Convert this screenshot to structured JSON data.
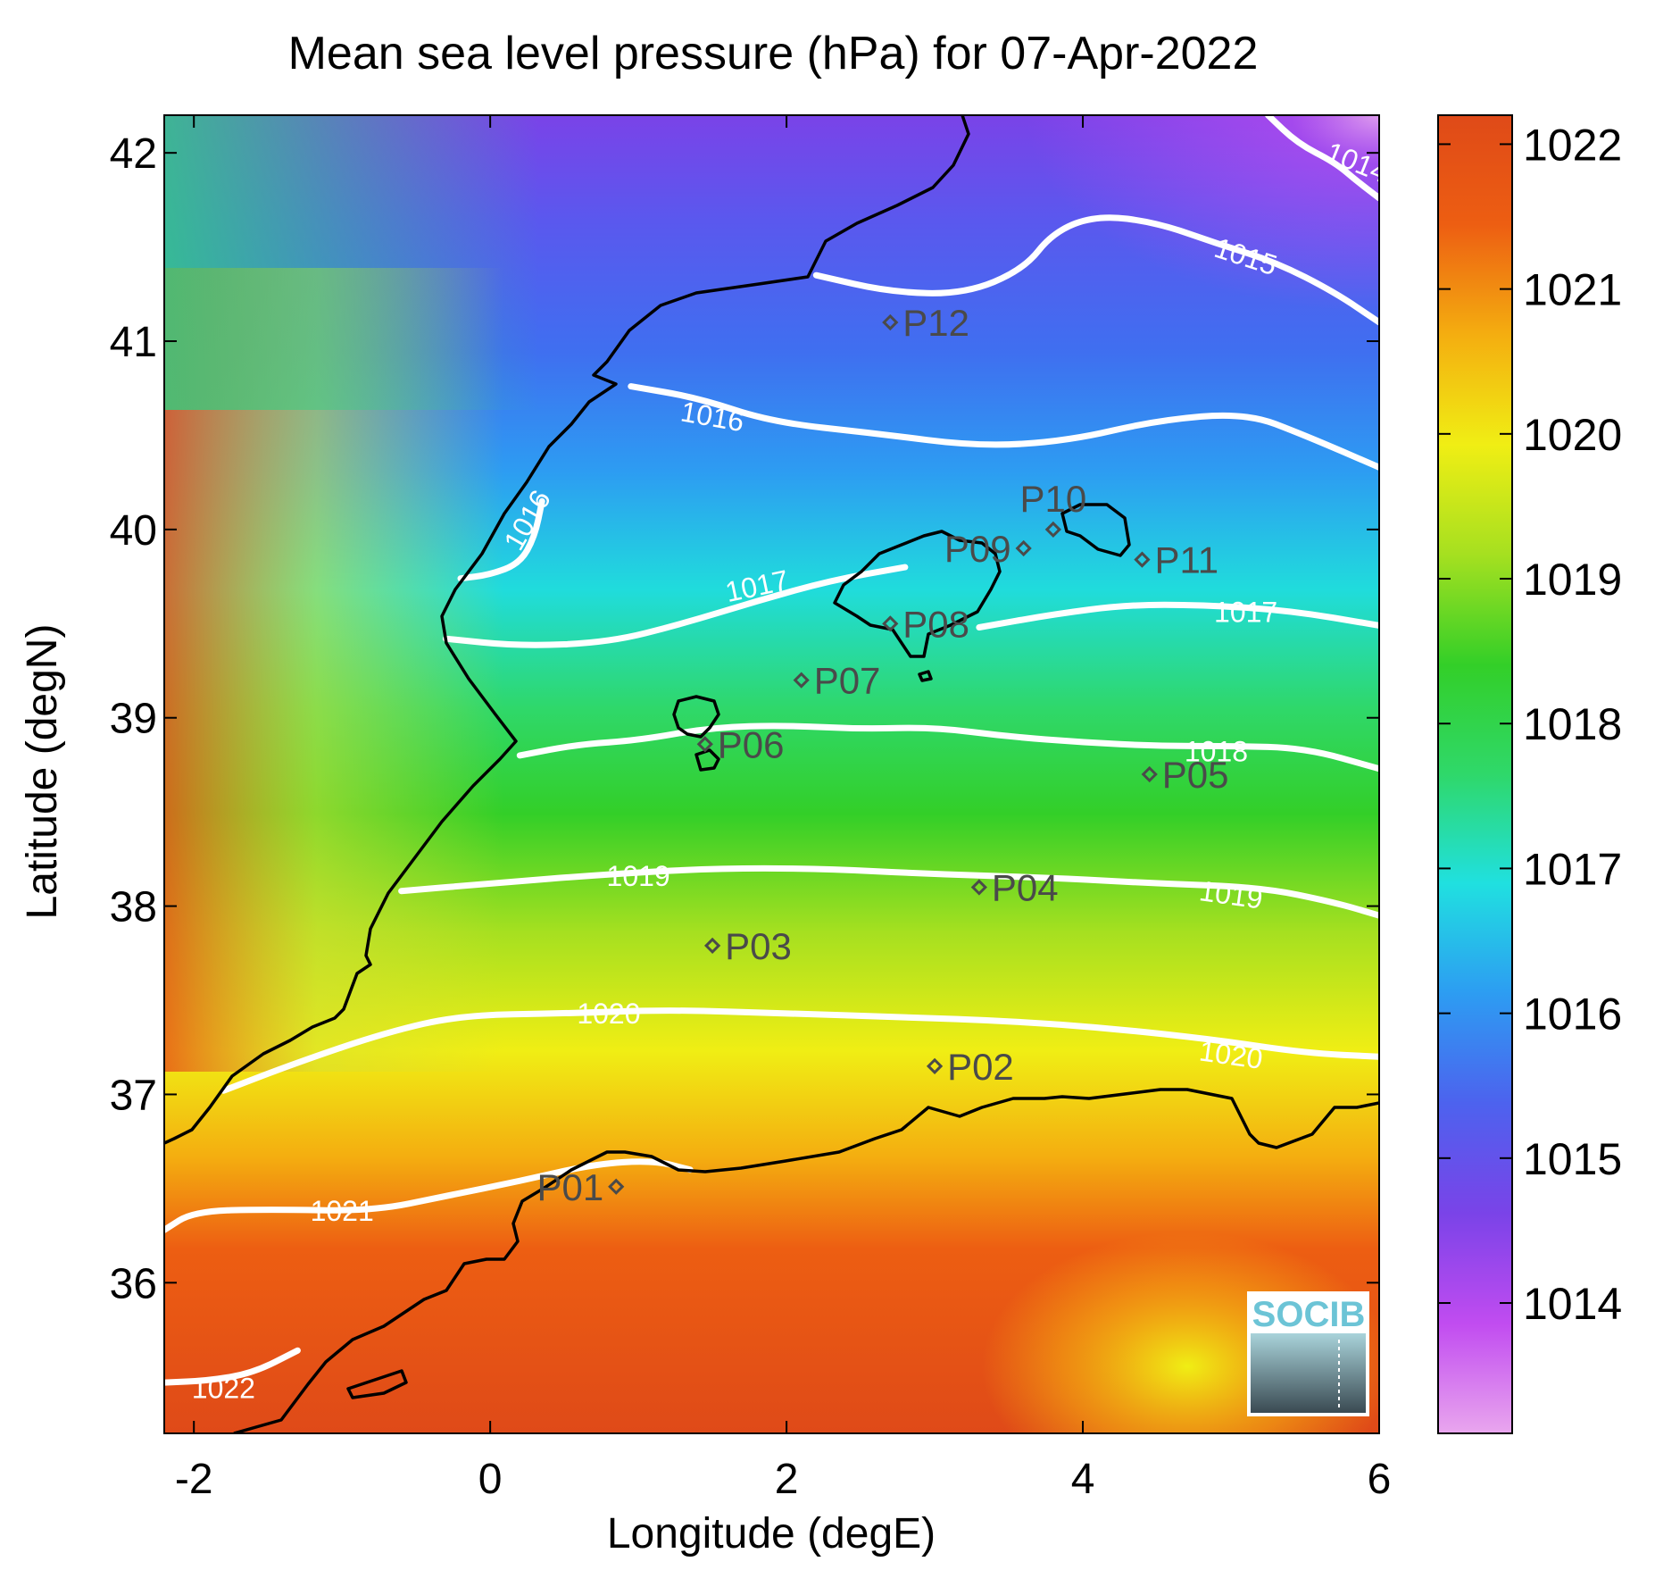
{
  "title": "Mean sea level pressure (hPa) for 07-Apr-2022",
  "xlabel": "Longitude (degE)",
  "ylabel": "Latitude (degN)",
  "xlim": [
    -2.2,
    6
  ],
  "ylim": [
    35.2,
    42.2
  ],
  "xticks": [
    {
      "v": -2,
      "label": "-2"
    },
    {
      "v": 0,
      "label": "0"
    },
    {
      "v": 2,
      "label": "2"
    },
    {
      "v": 4,
      "label": "4"
    },
    {
      "v": 6,
      "label": "6"
    }
  ],
  "yticks": [
    {
      "v": 36,
      "label": "36"
    },
    {
      "v": 37,
      "label": "37"
    },
    {
      "v": 38,
      "label": "38"
    },
    {
      "v": 39,
      "label": "39"
    },
    {
      "v": 40,
      "label": "40"
    },
    {
      "v": 41,
      "label": "41"
    },
    {
      "v": 42,
      "label": "42"
    }
  ],
  "colorbar": {
    "min": 1013.1,
    "max": 1022.2,
    "ticks": [
      {
        "v": 1014,
        "label": "1014"
      },
      {
        "v": 1015,
        "label": "1015"
      },
      {
        "v": 1016,
        "label": "1016"
      },
      {
        "v": 1017,
        "label": "1017"
      },
      {
        "v": 1018,
        "label": "1018"
      },
      {
        "v": 1019,
        "label": "1019"
      },
      {
        "v": 1020,
        "label": "1020"
      },
      {
        "v": 1021,
        "label": "1021"
      },
      {
        "v": 1022,
        "label": "1022"
      }
    ],
    "colors": [
      "#e9a6ee",
      "#c14cf0",
      "#7a43e8",
      "#4d62ee",
      "#2d9cf2",
      "#20e0e0",
      "#2fd86a",
      "#33cf28",
      "#a6e020",
      "#f0ee14",
      "#f4ae10",
      "#ed5e12",
      "#df4a18"
    ]
  },
  "contours": [
    {
      "level": 1014,
      "label": "1014",
      "points": [
        [
          5.25,
          42.2
        ],
        [
          5.45,
          42.05
        ],
        [
          5.7,
          41.95
        ],
        [
          5.85,
          41.85
        ],
        [
          6.0,
          41.76
        ]
      ],
      "labels": [
        {
          "x": 5.85,
          "y": 41.95,
          "rot": 22
        }
      ]
    },
    {
      "level": 1015,
      "label": "1015",
      "points": [
        [
          2.2,
          41.35
        ],
        [
          2.7,
          41.26
        ],
        [
          3.2,
          41.25
        ],
        [
          3.6,
          41.38
        ],
        [
          3.8,
          41.58
        ],
        [
          4.1,
          41.67
        ],
        [
          4.5,
          41.63
        ],
        [
          4.9,
          41.52
        ],
        [
          5.3,
          41.42
        ],
        [
          5.7,
          41.26
        ],
        [
          6.0,
          41.1
        ]
      ],
      "labels": [
        {
          "x": 5.1,
          "y": 41.45,
          "rot": 18
        }
      ]
    },
    {
      "level": 1016,
      "label": "1016",
      "points": [
        [
          0.95,
          40.76
        ],
        [
          1.4,
          40.7
        ],
        [
          1.9,
          40.57
        ],
        [
          2.6,
          40.51
        ],
        [
          3.3,
          40.44
        ],
        [
          3.9,
          40.47
        ],
        [
          4.5,
          40.58
        ],
        [
          5.1,
          40.62
        ],
        [
          5.5,
          40.5
        ],
        [
          6.0,
          40.33
        ]
      ],
      "labels": [
        {
          "x": 1.5,
          "y": 40.6,
          "rot": 10
        }
      ]
    },
    {
      "level": 1016,
      "label": "1016",
      "points": [
        [
          -0.2,
          39.74
        ],
        [
          0.0,
          39.76
        ],
        [
          0.2,
          39.82
        ],
        [
          0.3,
          39.96
        ],
        [
          0.35,
          40.15
        ]
      ],
      "labels": [
        {
          "x": 0.25,
          "y": 40.05,
          "rot": -60
        }
      ]
    },
    {
      "level": 1017,
      "label": "1017",
      "points": [
        [
          -0.3,
          39.42
        ],
        [
          0.2,
          39.38
        ],
        [
          0.8,
          39.4
        ],
        [
          1.3,
          39.5
        ],
        [
          1.8,
          39.62
        ],
        [
          2.3,
          39.73
        ],
        [
          2.8,
          39.8
        ]
      ],
      "labels": [
        {
          "x": 1.8,
          "y": 39.7,
          "rot": -12
        }
      ]
    },
    {
      "level": 1017,
      "label": "1017",
      "points": [
        [
          3.3,
          39.48
        ],
        [
          3.8,
          39.55
        ],
        [
          4.3,
          39.6
        ],
        [
          4.8,
          39.6
        ],
        [
          5.4,
          39.57
        ],
        [
          6.0,
          39.49
        ]
      ],
      "labels": [
        {
          "x": 5.1,
          "y": 39.56,
          "rot": 0
        }
      ]
    },
    {
      "level": 1018,
      "label": "1018",
      "points": [
        [
          0.2,
          38.8
        ],
        [
          0.6,
          38.86
        ],
        [
          1.0,
          38.88
        ],
        [
          1.5,
          38.95
        ],
        [
          2.0,
          38.96
        ],
        [
          2.5,
          38.94
        ],
        [
          3.0,
          38.95
        ],
        [
          3.5,
          38.9
        ],
        [
          4.0,
          38.87
        ],
        [
          4.5,
          38.85
        ],
        [
          5.0,
          38.85
        ],
        [
          5.5,
          38.84
        ],
        [
          6.0,
          38.73
        ]
      ],
      "labels": [
        {
          "x": 4.9,
          "y": 38.82,
          "rot": 0
        }
      ]
    },
    {
      "level": 1019,
      "label": "1019",
      "points": [
        [
          -0.6,
          38.08
        ],
        [
          0.0,
          38.12
        ],
        [
          0.8,
          38.17
        ],
        [
          1.5,
          38.2
        ],
        [
          2.2,
          38.2
        ],
        [
          3.0,
          38.17
        ],
        [
          3.8,
          38.15
        ],
        [
          4.5,
          38.12
        ],
        [
          5.2,
          38.1
        ],
        [
          5.7,
          38.02
        ],
        [
          6.0,
          37.95
        ]
      ],
      "labels": [
        {
          "x": 1.0,
          "y": 38.16,
          "rot": 0
        },
        {
          "x": 5.0,
          "y": 38.06,
          "rot": 8
        }
      ]
    },
    {
      "level": 1020,
      "label": "1020",
      "points": [
        [
          -1.8,
          37.02
        ],
        [
          -1.3,
          37.17
        ],
        [
          -0.7,
          37.33
        ],
        [
          -0.2,
          37.42
        ],
        [
          0.5,
          37.43
        ],
        [
          1.2,
          37.45
        ],
        [
          2.0,
          37.43
        ],
        [
          2.8,
          37.41
        ],
        [
          3.5,
          37.39
        ],
        [
          4.2,
          37.35
        ],
        [
          4.9,
          37.29
        ],
        [
          5.5,
          37.22
        ],
        [
          6.0,
          37.2
        ]
      ],
      "labels": [
        {
          "x": 0.8,
          "y": 37.43,
          "rot": 0
        },
        {
          "x": 5.0,
          "y": 37.21,
          "rot": 8
        }
      ]
    },
    {
      "level": 1021,
      "label": "1021",
      "points": [
        [
          -2.2,
          36.28
        ],
        [
          -2.0,
          36.38
        ],
        [
          -1.5,
          36.39
        ],
        [
          -0.8,
          36.38
        ],
        [
          -0.3,
          36.46
        ],
        [
          0.2,
          36.54
        ],
        [
          0.7,
          36.63
        ],
        [
          1.1,
          36.65
        ],
        [
          1.35,
          36.6
        ]
      ],
      "labels": [
        {
          "x": -1.0,
          "y": 36.38,
          "rot": 0
        }
      ]
    },
    {
      "level": 1022,
      "label": "1022",
      "points": [
        [
          -2.2,
          35.47
        ],
        [
          -1.9,
          35.48
        ],
        [
          -1.6,
          35.52
        ],
        [
          -1.3,
          35.64
        ]
      ],
      "labels": [
        {
          "x": -1.8,
          "y": 35.44,
          "rot": 0
        }
      ]
    }
  ],
  "stations": [
    {
      "name": "P01",
      "lon": 0.85,
      "lat": 36.51,
      "side": "left"
    },
    {
      "name": "P02",
      "lon": 3.0,
      "lat": 37.15,
      "side": "right"
    },
    {
      "name": "P03",
      "lon": 1.5,
      "lat": 37.79,
      "side": "right"
    },
    {
      "name": "P04",
      "lon": 3.3,
      "lat": 38.1,
      "side": "right"
    },
    {
      "name": "P05",
      "lon": 4.45,
      "lat": 38.7,
      "side": "right"
    },
    {
      "name": "P06",
      "lon": 1.45,
      "lat": 38.86,
      "side": "right"
    },
    {
      "name": "P07",
      "lon": 2.1,
      "lat": 39.2,
      "side": "right"
    },
    {
      "name": "P08",
      "lon": 2.7,
      "lat": 39.5,
      "side": "right"
    },
    {
      "name": "P09",
      "lon": 3.6,
      "lat": 39.9,
      "side": "left"
    },
    {
      "name": "P10",
      "lon": 3.8,
      "lat": 40.0,
      "side": "above"
    },
    {
      "name": "P11",
      "lon": 4.4,
      "lat": 39.84,
      "side": "right"
    },
    {
      "name": "P12",
      "lon": 2.7,
      "lat": 41.1,
      "side": "right"
    }
  ],
  "logo": "SOCIB"
}
